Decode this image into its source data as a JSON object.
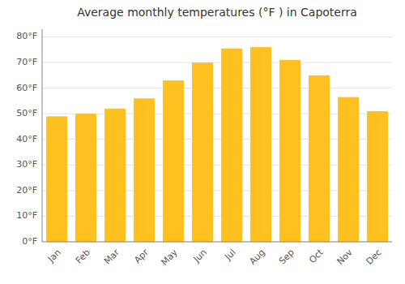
{
  "chart_data": {
    "type": "bar",
    "title": "Average monthly temperatures (°F ) in Capoterra",
    "categories": [
      "Jan",
      "Feb",
      "Mar",
      "Apr",
      "May",
      "Jun",
      "Jul",
      "Aug",
      "Sep",
      "Oct",
      "Nov",
      "Dec"
    ],
    "values": [
      49,
      50,
      52,
      56,
      63,
      70,
      75.5,
      76,
      71,
      65,
      56.5,
      51
    ],
    "color": "#FFC020",
    "ylim": [
      0,
      83
    ],
    "yticks": [
      {
        "value": 0,
        "label": "0°F"
      },
      {
        "value": 10,
        "label": "10°F"
      },
      {
        "value": 20,
        "label": "20°F"
      },
      {
        "value": 30,
        "label": "30°F"
      },
      {
        "value": 40,
        "label": "40°F"
      },
      {
        "value": 50,
        "label": "50°F"
      },
      {
        "value": 60,
        "label": "60°F"
      },
      {
        "value": 70,
        "label": "70°F"
      },
      {
        "value": 80,
        "label": "80°F"
      }
    ],
    "grid": true
  }
}
